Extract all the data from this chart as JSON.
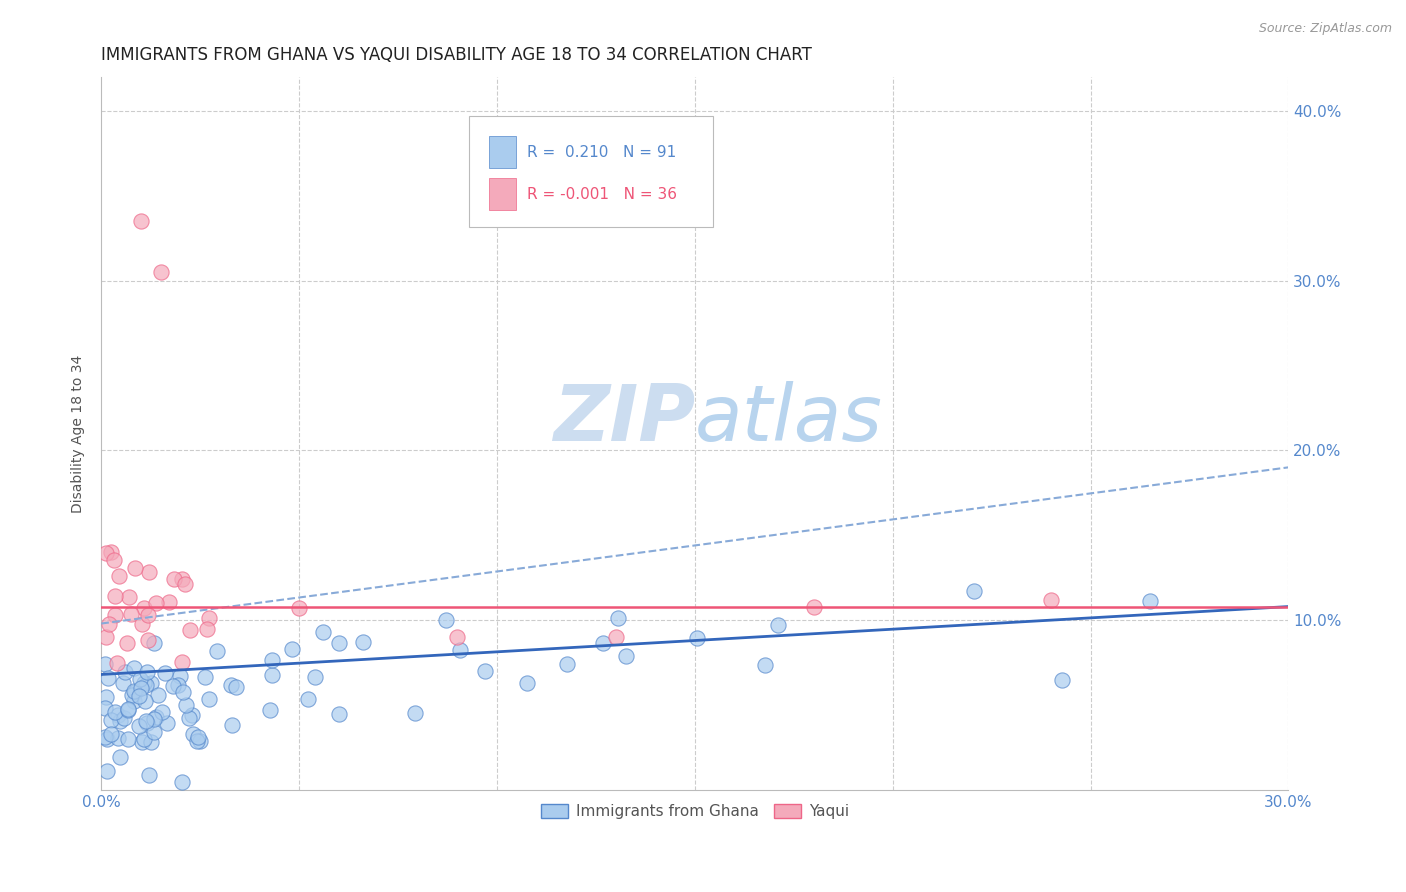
{
  "title": "IMMIGRANTS FROM GHANA VS YAQUI DISABILITY AGE 18 TO 34 CORRELATION CHART",
  "source_text": "Source: ZipAtlas.com",
  "ylabel": "Disability Age 18 to 34",
  "xlim": [
    0.0,
    0.3
  ],
  "ylim": [
    0.0,
    0.42
  ],
  "ghana_R": "0.210",
  "ghana_N": "91",
  "yaqui_R": "-0.001",
  "yaqui_N": "36",
  "ghana_color": "#aaccee",
  "yaqui_color": "#f4aabb",
  "ghana_edge_color": "#5588cc",
  "yaqui_edge_color": "#ee6688",
  "ghana_trend_color": "#3366bb",
  "yaqui_trend_color": "#ee5577",
  "ghana_dashed_color": "#88aad8",
  "watermark_color": "#ccddf0",
  "background_color": "#ffffff",
  "grid_color": "#cccccc",
  "tick_color": "#5588cc",
  "title_color": "#222222",
  "title_fontsize": 12,
  "label_fontsize": 10,
  "tick_fontsize": 11,
  "source_fontsize": 9
}
